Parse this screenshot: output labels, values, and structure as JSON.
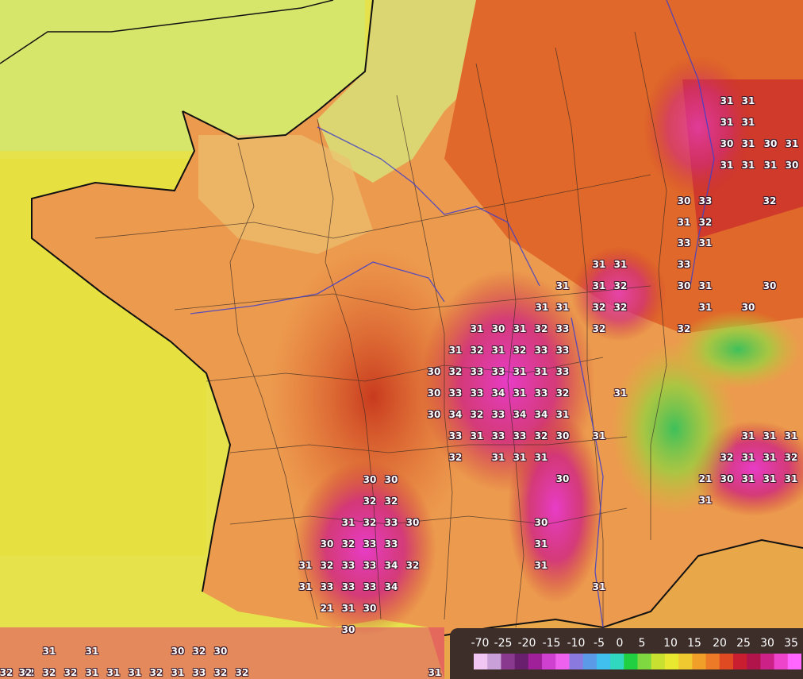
{
  "map": {
    "labels": [
      "31",
      "31",
      "31",
      "31",
      "30",
      "31",
      "30",
      "31",
      "31",
      "31",
      "31",
      "30",
      "30",
      "33",
      "31",
      "32",
      "32",
      "33",
      "31",
      "33",
      "31",
      "31",
      "30",
      "31",
      "31",
      "31",
      "32",
      "31",
      "31",
      "32",
      "32",
      "31",
      "30",
      "30",
      "31",
      "30",
      "31",
      "32",
      "33",
      "32",
      "32",
      "31",
      "32",
      "31",
      "32",
      "33",
      "33",
      "30",
      "32",
      "33",
      "33",
      "31",
      "31",
      "33",
      "30",
      "33",
      "33",
      "34",
      "31",
      "33",
      "32",
      "30",
      "34",
      "32",
      "33",
      "34",
      "34",
      "31",
      "33",
      "31",
      "33",
      "33",
      "32",
      "30",
      "31",
      "31",
      "31",
      "31",
      "31",
      "32",
      "31",
      "31",
      "32",
      "32",
      "31",
      "31",
      "31",
      "21",
      "30",
      "31",
      "31",
      "31",
      "31",
      "30",
      "30",
      "30",
      "32",
      "32",
      "31",
      "32",
      "33",
      "30",
      "30",
      "30",
      "32",
      "33",
      "33",
      "31",
      "31",
      "32",
      "33",
      "33",
      "34",
      "32",
      "31",
      "31",
      "33",
      "33",
      "33",
      "34",
      "31",
      "21",
      "31",
      "30",
      "30",
      "31",
      "31",
      "30",
      "32",
      "30",
      "32",
      "32",
      "32",
      "32",
      "31",
      "31",
      "31",
      "32",
      "31",
      "33",
      "32",
      "32",
      "31",
      "32"
    ]
  },
  "legend": {
    "ticks": [
      "-70",
      "-25",
      "-20",
      "-15",
      "-10",
      "-5",
      "0",
      "5",
      "10",
      "15",
      "20",
      "25",
      "30",
      "35"
    ],
    "colors": [
      "#f2c6f2",
      "#c9a0d8",
      "#8a3a8e",
      "#6a1f6e",
      "#a0209a",
      "#d040d0",
      "#ee60ee",
      "#8a7ae0",
      "#5a9ae6",
      "#40c0ee",
      "#30d8c0",
      "#20d040",
      "#80d840",
      "#c8e030",
      "#e8e830",
      "#f0c830",
      "#f0a028",
      "#ec7a26",
      "#e04a22",
      "#c81e30",
      "#b0144a",
      "#cc2288",
      "#ee44cc",
      "#ff66ff"
    ]
  }
}
